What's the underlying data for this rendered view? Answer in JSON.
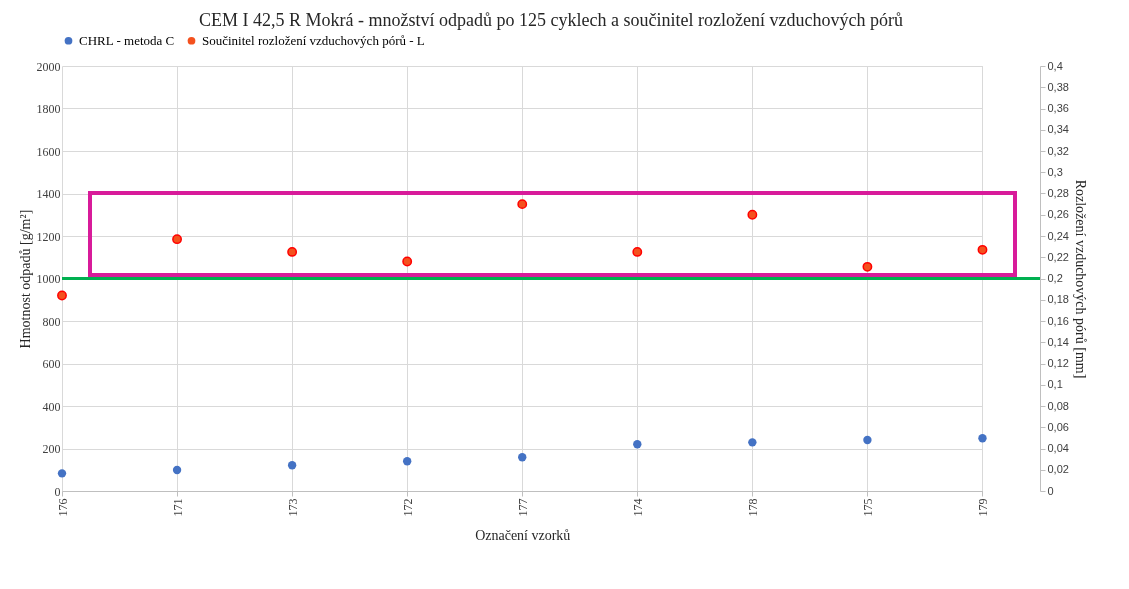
{
  "chart_data": {
    "type": "scatter",
    "title": "CEM I 42,5 R Mokrá - množství odpadů po 125 cyklech a součinitel rozložení vzduchových pórů",
    "xlabel": "Označení vzorků",
    "ylabel": "Hmotnost odpadů [g/m²]",
    "y2label": "Rozložení vzduchových pórů [mm]",
    "categories": [
      "176",
      "171",
      "173",
      "172",
      "177",
      "174",
      "178",
      "175",
      "179"
    ],
    "series": [
      {
        "name": "CHRL - metoda C",
        "color": "#4472c4",
        "values": [
          83,
          99,
          121,
          140,
          159,
          220,
          229,
          240,
          248
        ]
      },
      {
        "name": "Součinitel rozložení vzduchových pórů - L",
        "color": "#f4511e",
        "axis": "y2",
        "values": [
          0.184,
          0.237,
          0.225,
          0.216,
          0.27,
          0.225,
          0.26,
          0.211,
          0.227
        ]
      }
    ],
    "ylim": [
      0,
      2000
    ],
    "yticks": [
      0,
      200,
      400,
      600,
      800,
      1000,
      1200,
      1400,
      1600,
      1800,
      2000
    ],
    "y2lim": [
      0,
      0.4
    ],
    "y2ticks": [
      0,
      {
        "value": 0.02,
        "label": "0,02"
      },
      {
        "value": 0.04,
        "label": "0,04"
      },
      {
        "value": 0.06,
        "label": "0,06"
      },
      {
        "value": 0.08,
        "label": "0,08"
      },
      {
        "value": 0.1,
        "label": "0,1"
      },
      {
        "value": 0.12,
        "label": "0,12"
      },
      {
        "value": 0.14,
        "label": "0,14"
      },
      {
        "value": 0.16,
        "label": "0,16"
      },
      {
        "value": 0.18,
        "label": "0,18"
      },
      {
        "value": 0.2,
        "label": "0,2"
      },
      {
        "value": 0.22,
        "label": "0,22"
      },
      {
        "value": 0.24,
        "label": "0,24"
      },
      {
        "value": 0.26,
        "label": "0,26"
      },
      {
        "value": 0.28,
        "label": "0,28"
      },
      {
        "value": 0.3,
        "label": "0,3"
      },
      {
        "value": 0.32,
        "label": "0,32"
      },
      {
        "value": 0.34,
        "label": "0,34"
      },
      {
        "value": 0.36,
        "label": "0,36"
      },
      {
        "value": 0.38,
        "label": "0,38"
      },
      {
        "value": 0.4,
        "label": "0,4"
      }
    ],
    "ref_lines": [
      {
        "axis": "y",
        "value": 1000,
        "color": "#00b050"
      }
    ],
    "grid": true,
    "legend": "top",
    "marker": "circle"
  }
}
